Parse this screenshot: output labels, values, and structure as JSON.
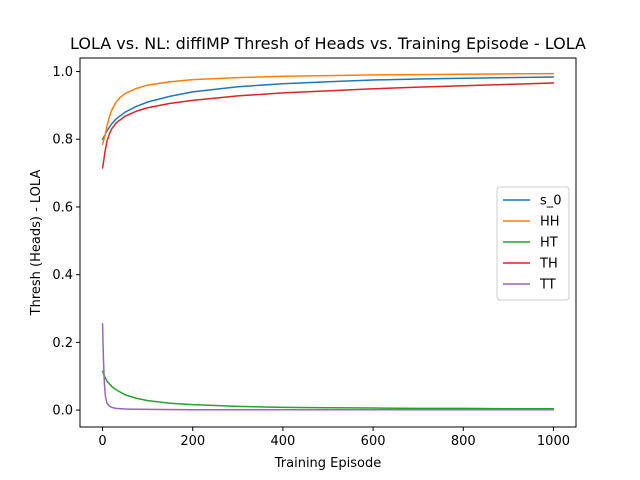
{
  "chart_data": {
    "type": "line",
    "title": "LOLA vs. NL: diffIMP Thresh of Heads vs. Training Episode - LOLA",
    "xlabel": "Training Episode",
    "ylabel": "Thresh (Heads) - LOLA",
    "xlim": [
      -50,
      1050
    ],
    "ylim": [
      -0.05,
      1.04
    ],
    "xticks": [
      0,
      200,
      400,
      600,
      800,
      1000
    ],
    "yticks": [
      0.0,
      0.2,
      0.4,
      0.6,
      0.8,
      1.0
    ],
    "xtick_labels": [
      "0",
      "200",
      "400",
      "600",
      "800",
      "1000"
    ],
    "ytick_labels": [
      "0.0",
      "0.2",
      "0.4",
      "0.6",
      "0.8",
      "1.0"
    ],
    "grid": false,
    "legend_position": "center-right",
    "series": [
      {
        "name": "s_0",
        "color": "#1f77b4",
        "x": [
          0,
          5,
          10,
          20,
          30,
          50,
          75,
          100,
          150,
          200,
          300,
          400,
          500,
          600,
          700,
          800,
          900,
          1000
        ],
        "y": [
          0.8,
          0.812,
          0.825,
          0.845,
          0.86,
          0.88,
          0.897,
          0.91,
          0.927,
          0.94,
          0.955,
          0.964,
          0.97,
          0.975,
          0.978,
          0.98,
          0.982,
          0.984
        ]
      },
      {
        "name": "HH",
        "color": "#ff7f0e",
        "x": [
          0,
          5,
          10,
          15,
          20,
          30,
          40,
          50,
          75,
          100,
          150,
          200,
          300,
          400,
          500,
          600,
          700,
          800,
          900,
          1000
        ],
        "y": [
          0.785,
          0.808,
          0.84,
          0.865,
          0.885,
          0.91,
          0.925,
          0.935,
          0.95,
          0.96,
          0.97,
          0.976,
          0.982,
          0.986,
          0.988,
          0.99,
          0.991,
          0.992,
          0.993,
          0.994
        ]
      },
      {
        "name": "HT",
        "color": "#2ca02c",
        "x": [
          0,
          5,
          10,
          20,
          30,
          50,
          75,
          100,
          150,
          200,
          300,
          400,
          500,
          600,
          700,
          800,
          900,
          1000
        ],
        "y": [
          0.115,
          0.098,
          0.085,
          0.07,
          0.06,
          0.045,
          0.035,
          0.028,
          0.02,
          0.016,
          0.011,
          0.008,
          0.007,
          0.006,
          0.005,
          0.005,
          0.004,
          0.004
        ]
      },
      {
        "name": "TH",
        "color": "#d62728",
        "x": [
          0,
          3,
          5,
          10,
          15,
          20,
          30,
          50,
          75,
          100,
          150,
          200,
          300,
          400,
          500,
          600,
          700,
          800,
          900,
          1000
        ],
        "y": [
          0.715,
          0.74,
          0.76,
          0.795,
          0.815,
          0.83,
          0.848,
          0.868,
          0.883,
          0.893,
          0.906,
          0.915,
          0.928,
          0.937,
          0.943,
          0.949,
          0.954,
          0.958,
          0.962,
          0.966
        ]
      },
      {
        "name": "TT",
        "color": "#9467bd",
        "x": [
          0,
          2,
          4,
          6,
          8,
          10,
          15,
          20,
          30,
          50,
          100,
          200,
          400,
          600,
          800,
          1000
        ],
        "y": [
          0.255,
          0.15,
          0.08,
          0.045,
          0.03,
          0.02,
          0.012,
          0.008,
          0.005,
          0.003,
          0.002,
          0.001,
          0.001,
          0.001,
          0.001,
          0.001
        ]
      }
    ]
  }
}
